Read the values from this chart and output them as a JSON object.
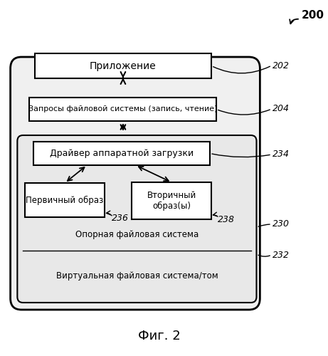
{
  "title": "Фиг. 2",
  "label_200": "200",
  "label_202": "202",
  "label_204": "204",
  "label_230": "230",
  "label_232": "232",
  "label_234": "234",
  "label_236": "236",
  "label_238": "238",
  "text_app": "Приложение",
  "text_fs_req": "Запросы файловой системы (запись, чтение)",
  "text_driver": "Драйвер аппаратной загрузки",
  "text_primary": "Первичный образ",
  "text_secondary": "Вторичный\nобраз(ы)",
  "text_base_fs": "Опорная файловая система",
  "text_virt_fs": "Виртуальная файловая система/том",
  "bg_color": "#ffffff"
}
